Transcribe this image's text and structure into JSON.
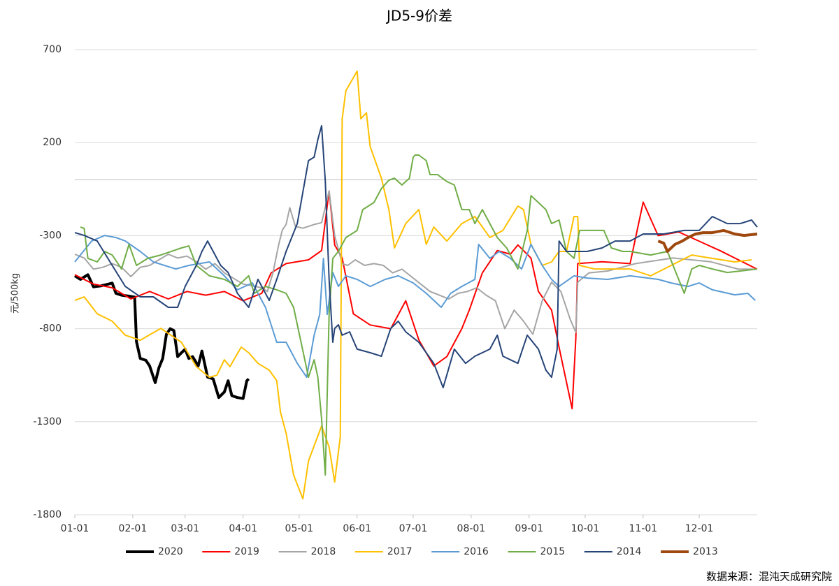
{
  "chart_data": {
    "type": "line",
    "title": "JD5-9价差",
    "y_label": "元/500kg",
    "source": "数据来源：混沌天成研究院",
    "xlim": [
      0,
      365
    ],
    "xticks": [
      {
        "value": 0,
        "label": "01-01"
      },
      {
        "value": 31,
        "label": "02-01"
      },
      {
        "value": 59,
        "label": "03-01"
      },
      {
        "value": 90,
        "label": "04-01"
      },
      {
        "value": 120,
        "label": "05-01"
      },
      {
        "value": 151,
        "label": "06-01"
      },
      {
        "value": 181,
        "label": "07-01"
      },
      {
        "value": 212,
        "label": "08-01"
      },
      {
        "value": 243,
        "label": "09-01"
      },
      {
        "value": 273,
        "label": "10-01"
      },
      {
        "value": 304,
        "label": "11-01"
      },
      {
        "value": 334,
        "label": "12-01"
      }
    ],
    "ylim": [
      -1800,
      700
    ],
    "yticks": [
      -1800,
      -1300,
      -800,
      -300,
      200,
      700
    ],
    "grid": true,
    "legend": "bottom",
    "series": [
      {
        "name": "2020",
        "color": "#000000",
        "line_width": 4,
        "x": [
          0,
          3,
          7,
          10,
          14,
          18,
          20,
          22,
          25,
          29,
          32,
          33,
          35,
          38,
          40,
          43,
          45,
          47,
          49,
          51,
          53,
          55,
          57,
          59,
          61,
          63,
          66,
          68,
          71,
          74,
          77,
          80,
          82,
          84,
          87,
          90,
          92,
          93
        ],
        "values": [
          -516,
          -535,
          -510,
          -575,
          -570,
          -560,
          -555,
          -610,
          -620,
          -625,
          -630,
          -870,
          -960,
          -970,
          -1000,
          -1090,
          -1010,
          -960,
          -830,
          -800,
          -810,
          -950,
          -930,
          -910,
          -960,
          -950,
          -1000,
          -920,
          -1060,
          -1070,
          -1170,
          -1140,
          -1080,
          -1160,
          -1170,
          -1175,
          -1080,
          -1070
        ]
      },
      {
        "name": "2019",
        "color": "#ff0000",
        "line_width": 2,
        "x": [
          0,
          10,
          20,
          30,
          40,
          50,
          60,
          70,
          80,
          90,
          100,
          105,
          113,
          125,
          132,
          136,
          139,
          143,
          149,
          158,
          169,
          177,
          184,
          192,
          199,
          207,
          211,
          218,
          226,
          233,
          237,
          244,
          248,
          255,
          259,
          266,
          268,
          269,
          282,
          297,
          304,
          312,
          323,
          334,
          345,
          353,
          365
        ],
        "values": [
          -510,
          -560,
          -580,
          -640,
          -600,
          -640,
          -600,
          -620,
          -600,
          -650,
          -610,
          -500,
          -450,
          -430,
          -380,
          -60,
          -350,
          -420,
          -720,
          -780,
          -800,
          -650,
          -860,
          -1000,
          -950,
          -800,
          -700,
          -500,
          -380,
          -400,
          -350,
          -420,
          -600,
          -700,
          -900,
          -1230,
          -850,
          -450,
          -440,
          -450,
          -120,
          -300,
          -280,
          -330,
          -380,
          -420,
          -480
        ]
      },
      {
        "name": "2018",
        "color": "#a5a5a5",
        "line_width": 2,
        "x": [
          0,
          5,
          10,
          15,
          20,
          25,
          30,
          35,
          40,
          45,
          50,
          55,
          60,
          65,
          70,
          75,
          80,
          85,
          90,
          95,
          100,
          103,
          106,
          109,
          111,
          113,
          115,
          118,
          122,
          125,
          128,
          132,
          136,
          139,
          143,
          146,
          150,
          155,
          160,
          165,
          170,
          175,
          180,
          185,
          190,
          195,
          200,
          205,
          210,
          215,
          220,
          225,
          230,
          235,
          240,
          245,
          250,
          255,
          260,
          265,
          268,
          269,
          275,
          285,
          300,
          320,
          340,
          355,
          365
        ],
        "values": [
          -400,
          -420,
          -480,
          -470,
          -450,
          -470,
          -520,
          -470,
          -460,
          -430,
          -400,
          -420,
          -410,
          -440,
          -480,
          -450,
          -500,
          -530,
          -560,
          -570,
          -580,
          -600,
          -500,
          -350,
          -270,
          -240,
          -150,
          -250,
          -260,
          -250,
          -240,
          -230,
          -60,
          -300,
          -450,
          -460,
          -430,
          -460,
          -450,
          -460,
          -500,
          -480,
          -520,
          -560,
          -600,
          -620,
          -640,
          -610,
          -600,
          -580,
          -620,
          -650,
          -800,
          -700,
          -760,
          -830,
          -650,
          -550,
          -600,
          -750,
          -820,
          -550,
          -500,
          -490,
          -450,
          -420,
          -440,
          -480,
          -480
        ]
      },
      {
        "name": "2017",
        "color": "#ffc000",
        "line_width": 2,
        "x": [
          0,
          5,
          12,
          20,
          27,
          35,
          46,
          57,
          65,
          72,
          76,
          80,
          83,
          89,
          93,
          98,
          104,
          108,
          110,
          113,
          117,
          122,
          125,
          132,
          136,
          139,
          142,
          143,
          145,
          151,
          153,
          156,
          158,
          164,
          168,
          171,
          177,
          184,
          188,
          192,
          199,
          207,
          214,
          222,
          229,
          237,
          240,
          244,
          250,
          255,
          259,
          263,
          267,
          269,
          270,
          278,
          285,
          297,
          308,
          319,
          330,
          341,
          353,
          362
        ],
        "values": [
          -648,
          -629,
          -720,
          -760,
          -835,
          -862,
          -798,
          -873,
          -1004,
          -1061,
          -1050,
          -967,
          -1004,
          -899,
          -929,
          -986,
          -1023,
          -1079,
          -1248,
          -1361,
          -1586,
          -1714,
          -1511,
          -1323,
          -1436,
          -1624,
          -1380,
          328,
          479,
          584,
          328,
          360,
          178,
          9,
          -160,
          -366,
          -235,
          -160,
          -347,
          -254,
          -329,
          -235,
          -197,
          -310,
          -272,
          -141,
          -160,
          -347,
          -460,
          -441,
          -385,
          -385,
          -197,
          -197,
          -460,
          -479,
          -479,
          -479,
          -516,
          -460,
          -404,
          -422,
          -441,
          -430
        ]
      },
      {
        "name": "2016",
        "color": "#5b9bd5",
        "line_width": 2,
        "x": [
          0,
          9,
          16,
          22,
          27,
          35,
          42,
          54,
          61,
          72,
          80,
          87,
          95,
          102,
          108,
          113,
          119,
          124,
          128,
          131,
          133,
          135,
          138,
          141,
          145,
          151,
          158,
          166,
          173,
          181,
          188,
          196,
          201,
          207,
          214,
          216,
          222,
          227,
          233,
          239,
          244,
          250,
          255,
          259,
          267,
          274,
          285,
          297,
          312,
          319,
          328,
          334,
          341,
          353,
          360,
          364
        ],
        "values": [
          -441,
          -329,
          -299,
          -310,
          -329,
          -385,
          -441,
          -479,
          -460,
          -441,
          -516,
          -591,
          -554,
          -685,
          -873,
          -873,
          -986,
          -1061,
          -835,
          -723,
          -422,
          -723,
          -498,
          -573,
          -516,
          -535,
          -573,
          -535,
          -516,
          -554,
          -610,
          -685,
          -610,
          -573,
          -535,
          -347,
          -422,
          -385,
          -422,
          -479,
          -347,
          -460,
          -535,
          -573,
          -516,
          -528,
          -535,
          -516,
          -535,
          -554,
          -573,
          -554,
          -591,
          -618,
          -610,
          -648
        ]
      },
      {
        "name": "2015",
        "color": "#70ad47",
        "line_width": 2,
        "x": [
          3,
          5,
          7,
          12,
          16,
          20,
          25,
          29,
          33,
          39,
          46,
          57,
          61,
          65,
          72,
          80,
          87,
          93,
          96,
          102,
          108,
          113,
          117,
          121,
          125,
          128,
          130,
          132,
          134,
          136,
          138,
          141,
          145,
          151,
          154,
          160,
          164,
          168,
          171,
          175,
          179,
          181,
          182,
          184,
          188,
          190,
          194,
          199,
          203,
          207,
          211,
          214,
          218,
          226,
          231,
          237,
          242,
          244,
          248,
          252,
          255,
          259,
          263,
          267,
          270,
          278,
          283,
          287,
          293,
          297,
          308,
          317,
          323,
          326,
          330,
          334,
          341,
          349,
          356,
          365
        ],
        "values": [
          -254,
          -261,
          -422,
          -441,
          -385,
          -404,
          -479,
          -347,
          -460,
          -422,
          -404,
          -366,
          -355,
          -460,
          -516,
          -535,
          -573,
          -516,
          -610,
          -573,
          -591,
          -610,
          -685,
          -873,
          -1061,
          -967,
          -1061,
          -1286,
          -1586,
          -723,
          -422,
          -385,
          -310,
          -272,
          -160,
          -122,
          -47,
          -2,
          9,
          -28,
          9,
          122,
          133,
          133,
          103,
          28,
          28,
          -9,
          -28,
          -160,
          -160,
          -235,
          -160,
          -310,
          -366,
          -479,
          -272,
          -85,
          -122,
          -160,
          -235,
          -216,
          -385,
          -422,
          -272,
          -272,
          -272,
          -366,
          -385,
          -385,
          -404,
          -385,
          -535,
          -610,
          -479,
          -460,
          -479,
          -498,
          -490,
          -479
        ]
      },
      {
        "name": "2014",
        "color": "#264478",
        "line_width": 2,
        "x": [
          0,
          5,
          12,
          20,
          27,
          35,
          42,
          50,
          55,
          59,
          65,
          68,
          71,
          74,
          78,
          82,
          87,
          93,
          98,
          104,
          108,
          113,
          119,
          125,
          128,
          130,
          132,
          134,
          136,
          138,
          139,
          141,
          143,
          147,
          151,
          158,
          164,
          169,
          173,
          177,
          184,
          192,
          197,
          203,
          209,
          214,
          222,
          226,
          229,
          237,
          242,
          248,
          252,
          255,
          258,
          259,
          263,
          269,
          274,
          282,
          289,
          297,
          304,
          315,
          326,
          334,
          341,
          349,
          356,
          362,
          365
        ],
        "values": [
          -284,
          -299,
          -329,
          -460,
          -573,
          -629,
          -629,
          -685,
          -685,
          -573,
          -460,
          -385,
          -329,
          -385,
          -460,
          -498,
          -610,
          -685,
          -535,
          -648,
          -535,
          -385,
          -235,
          103,
          122,
          216,
          291,
          -9,
          -535,
          -873,
          -798,
          -779,
          -835,
          -817,
          -910,
          -929,
          -948,
          -798,
          -760,
          -817,
          -873,
          -986,
          -1117,
          -910,
          -986,
          -948,
          -910,
          -835,
          -948,
          -986,
          -835,
          -910,
          -1023,
          -1061,
          -910,
          -329,
          -385,
          -385,
          -385,
          -366,
          -329,
          -329,
          -291,
          -291,
          -272,
          -272,
          -197,
          -235,
          -235,
          -216,
          -254
        ]
      },
      {
        "name": "2013",
        "color": "#9e480e",
        "line_width": 4,
        "x": [
          312,
          315,
          317,
          321,
          325,
          328,
          332,
          336,
          341,
          347,
          353,
          358,
          365
        ],
        "values": [
          -329,
          -340,
          -385,
          -347,
          -329,
          -310,
          -291,
          -284,
          -284,
          -272,
          -291,
          -299,
          -291
        ]
      }
    ]
  }
}
